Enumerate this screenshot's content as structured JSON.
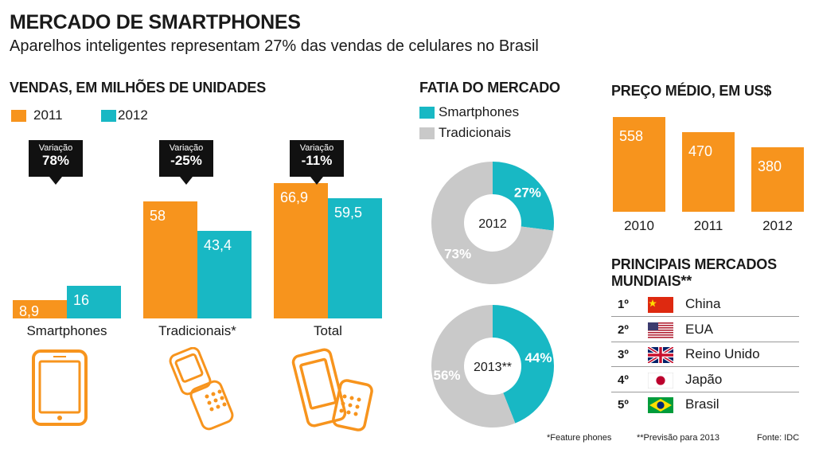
{
  "header": {
    "title": "MERCADO DE SMARTPHONES",
    "subtitle": "Aparelhos inteligentes representam 27% das vendas de celulares no Brasil"
  },
  "colors": {
    "orange": "#f7941d",
    "teal": "#18b8c4",
    "gray": "#c9c9c9"
  },
  "chart_data": [
    {
      "type": "bar",
      "title": "VENDAS, EM MILHÕES DE UNIDADES",
      "categories": [
        "Smartphones",
        "Tradicionais*",
        "Total"
      ],
      "series": [
        {
          "name": "2011",
          "values": [
            8.9,
            58,
            66.9
          ],
          "labels": [
            "8,9",
            "58",
            "66,9"
          ]
        },
        {
          "name": "2012",
          "values": [
            16,
            43.4,
            59.5
          ],
          "labels": [
            "16",
            "43,4",
            "59,5"
          ]
        }
      ],
      "callouts": [
        {
          "label": "Variação",
          "value": "78%"
        },
        {
          "label": "Variação",
          "value": "-25%"
        },
        {
          "label": "Variação",
          "value": "-11%"
        }
      ],
      "ylim": [
        0,
        70
      ]
    },
    {
      "type": "pie",
      "title": "FATIA DO MERCADO",
      "legend": [
        "Smartphones",
        "Tradicionais"
      ],
      "donuts": [
        {
          "center_label": "2012",
          "slices": [
            {
              "name": "Smartphones",
              "value": 27,
              "label": "27%"
            },
            {
              "name": "Tradicionais",
              "value": 73,
              "label": "73%"
            }
          ]
        },
        {
          "center_label": "2013**",
          "slices": [
            {
              "name": "Smartphones",
              "value": 44,
              "label": "44%"
            },
            {
              "name": "Tradicionais",
              "value": 56,
              "label": "56%"
            }
          ]
        }
      ]
    },
    {
      "type": "bar",
      "title": "PREÇO MÉDIO, EM US$",
      "categories": [
        "2010",
        "2011",
        "2012"
      ],
      "values": [
        558,
        470,
        380
      ],
      "ylim": [
        0,
        600
      ]
    },
    {
      "type": "table",
      "title": "PRINCIPAIS MERCADOS MUNDIAIS**",
      "rows": [
        {
          "rank": "1º",
          "country": "China",
          "flag": "china-flag-icon"
        },
        {
          "rank": "2º",
          "country": "EUA",
          "flag": "usa-flag-icon"
        },
        {
          "rank": "3º",
          "country": "Reino Unido",
          "flag": "uk-flag-icon"
        },
        {
          "rank": "4º",
          "country": "Japão",
          "flag": "japan-flag-icon"
        },
        {
          "rank": "5º",
          "country": "Brasil",
          "flag": "brazil-flag-icon"
        }
      ]
    }
  ],
  "icons": [
    "smartphone-icon",
    "flip-phone-icon",
    "phones-pair-icon"
  ],
  "footer": {
    "note1": "*Feature phones",
    "note2": "**Previsão para 2013",
    "source": "Fonte: IDC"
  }
}
